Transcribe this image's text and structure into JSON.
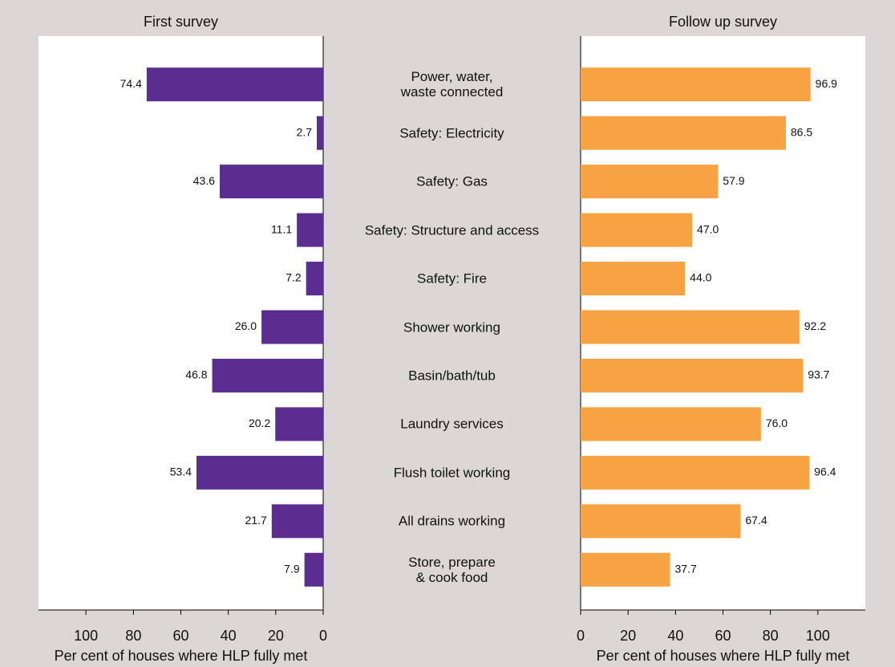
{
  "chart_data": {
    "type": "butterfly",
    "categories": [
      "Power, water,\nwaste connected",
      "Safety: Electricity",
      "Safety: Gas",
      "Safety: Structure and access",
      "Safety: Fire",
      "Shower working",
      "Basin/bath/tub",
      "Laundry services",
      "Flush toilet working",
      "All drains working",
      "Store, prepare\n& cook food"
    ],
    "series": [
      {
        "name": "First survey",
        "color": "#5c2d91",
        "values": [
          74.4,
          2.7,
          43.6,
          11.1,
          7.2,
          26.0,
          46.8,
          20.2,
          53.4,
          21.7,
          7.9
        ],
        "value_labels": [
          "74.4",
          "2.7",
          "43.6",
          "11.1",
          "7.2",
          "26.0",
          "46.8",
          "20.2",
          "53.4",
          "21.7",
          "7.9"
        ],
        "xlim": [
          0,
          120
        ],
        "xticks": [
          0,
          20,
          40,
          60,
          80,
          100
        ],
        "xlabel": "Per cent of houses where HLP fully met"
      },
      {
        "name": "Follow up survey",
        "color": "#f7a243",
        "values": [
          96.9,
          86.5,
          57.9,
          47.0,
          44.0,
          92.2,
          93.7,
          76.0,
          96.4,
          67.4,
          37.7
        ],
        "value_labels": [
          "96.9",
          "86.5",
          "57.9",
          "47.0",
          "44.0",
          "92.2",
          "93.7",
          "76.0",
          "96.4",
          "67.4",
          "37.7"
        ],
        "xlim": [
          0,
          120
        ],
        "xticks": [
          0,
          20,
          40,
          60,
          80,
          100
        ],
        "xlabel": "Per cent of houses where HLP fully met"
      }
    ]
  }
}
